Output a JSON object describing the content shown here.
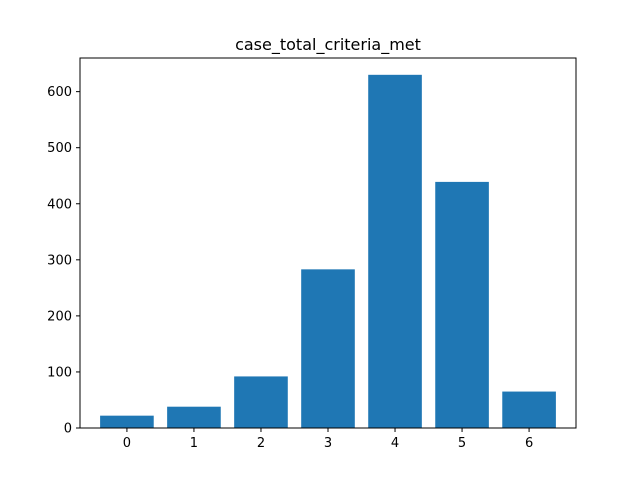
{
  "chart_data": {
    "type": "bar",
    "title": "case_total_criteria_met",
    "xlabel": "",
    "ylabel": "",
    "categories": [
      "0",
      "1",
      "2",
      "3",
      "4",
      "5",
      "6"
    ],
    "values": [
      22,
      38,
      92,
      283,
      630,
      439,
      65
    ],
    "ylim": [
      0,
      660
    ],
    "yticks": [
      0,
      100,
      200,
      300,
      400,
      500,
      600
    ],
    "bar_color": "#1f77b4",
    "grid": false,
    "legend": "none"
  }
}
